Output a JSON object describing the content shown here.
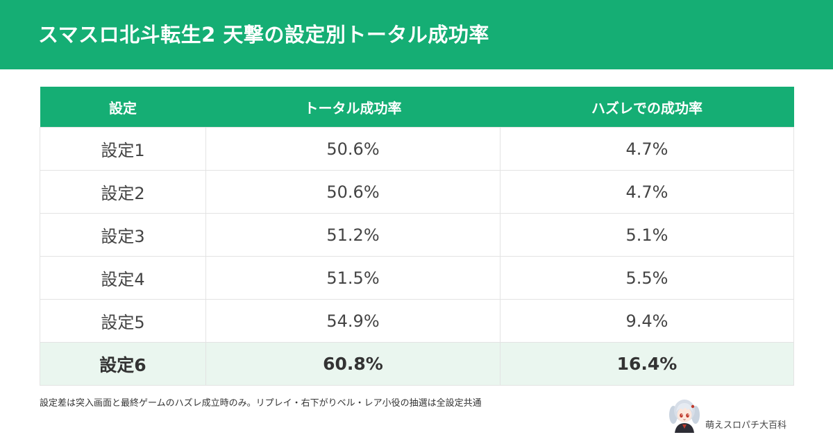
{
  "header": {
    "title": "スマスロ北斗転生2 天撃の設定別トータル成功率"
  },
  "table": {
    "columns": [
      "設定",
      "トータル成功率",
      "ハズレでの成功率"
    ],
    "rows": [
      {
        "setting": "設定1",
        "total": "50.6%",
        "hazure": "4.7%"
      },
      {
        "setting": "設定2",
        "total": "50.6%",
        "hazure": "4.7%"
      },
      {
        "setting": "設定3",
        "total": "51.2%",
        "hazure": "5.1%"
      },
      {
        "setting": "設定4",
        "total": "51.5%",
        "hazure": "5.5%"
      },
      {
        "setting": "設定5",
        "total": "54.9%",
        "hazure": "9.4%"
      },
      {
        "setting": "設定6",
        "total": "60.8%",
        "hazure": "16.4%"
      }
    ]
  },
  "note": "設定差は突入画面と最終ゲームのハズレ成立時のみ。リプレイ・右下がりベル・レア小役の抽選は全設定共通",
  "brand": {
    "name": "萌えスロパチ大百科"
  },
  "colors": {
    "accent": "#15ae74",
    "highlight_row": "#eaf6ef"
  },
  "icons": {
    "brand_avatar": "character-avatar-icon"
  }
}
